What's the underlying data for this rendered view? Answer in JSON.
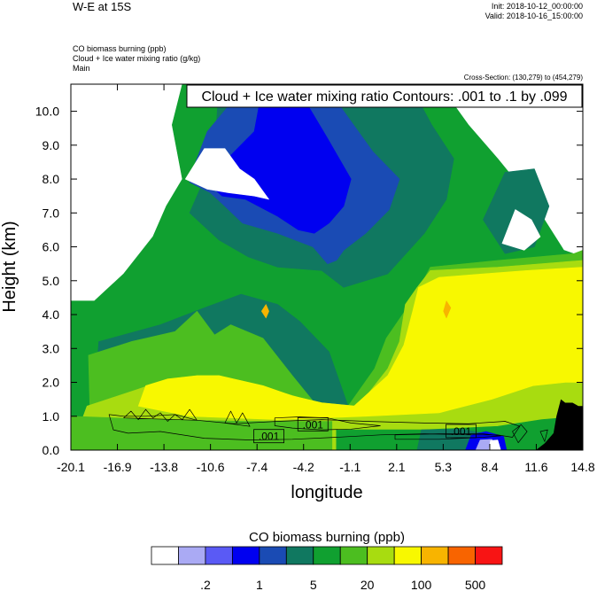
{
  "header": {
    "title": "W-E at 15S",
    "init": "Init: 2018-10-12_00:00:00",
    "valid": "Valid: 2018-10-16_15:00:00",
    "fields": [
      "CO biomass burning   (ppb)",
      "Cloud + Ice water mixing ratio   (g/kg)",
      "Main"
    ],
    "cross_section": "Cross-Section: (130,279) to (454,279)"
  },
  "chart_data": {
    "type": "heatmap",
    "title": "W-E at 15S",
    "xlabel": "longitude",
    "ylabel": "Height (km)",
    "xlim": [
      -20.1,
      14.8
    ],
    "ylim": [
      0.0,
      10.8
    ],
    "x_ticks": [
      "-20.1",
      "-16.9",
      "-13.8",
      "-10.6",
      "-7.4",
      "-4.2",
      "-1.1",
      "2.1",
      "5.3",
      "8.4",
      "11.6",
      "14.8"
    ],
    "y_ticks": [
      "0.0",
      "1.0",
      "2.0",
      "3.0",
      "4.0",
      "5.0",
      "6.0",
      "7.0",
      "8.0",
      "9.0",
      "10.0"
    ],
    "contour_info": "Cloud + Ice water mixing ratio Contours: .001 to .1 by .099",
    "contour_labels": [
      {
        "text": ".001",
        "lon": -6.6,
        "height": 0.4
      },
      {
        "text": ".001",
        "lon": -3.6,
        "height": 0.75
      },
      {
        "text": ".001",
        "lon": 6.5,
        "height": 0.55
      }
    ],
    "colorbar": {
      "title": "CO biomass burning  (ppb)",
      "colors": [
        "#ffffff",
        "#aaaaf4",
        "#5a5af5",
        "#0000f0",
        "#1a4bb4",
        "#107860",
        "#10a030",
        "#4cbe20",
        "#a8dc10",
        "#f8f800",
        "#f8b400",
        "#f86400",
        "#f81414"
      ],
      "labels": [
        ".2",
        "1",
        "5",
        "20",
        "100",
        "500"
      ]
    },
    "regions": [
      {
        "level": 6,
        "poly": [
          [
            -20.1,
            0
          ],
          [
            14.8,
            0
          ],
          [
            14.8,
            5.7
          ],
          [
            13.5,
            5.9
          ],
          [
            11.6,
            7.2
          ],
          [
            10.5,
            7.8
          ],
          [
            9,
            8.6
          ],
          [
            7,
            9.6
          ],
          [
            5,
            10.8
          ],
          [
            -12.5,
            10.8
          ],
          [
            -13.2,
            9.6
          ],
          [
            -12.5,
            8
          ],
          [
            -13.6,
            7.2
          ],
          [
            -14.5,
            6.3
          ],
          [
            -16.5,
            5.2
          ],
          [
            -18.5,
            4.4
          ],
          [
            -20.1,
            4.4
          ]
        ]
      },
      {
        "level": 5,
        "poly": [
          [
            -10,
            10.8
          ],
          [
            -10.2,
            9.5
          ],
          [
            -11,
            8
          ],
          [
            -12,
            7
          ],
          [
            -10,
            6.2
          ],
          [
            -8,
            5.7
          ],
          [
            -6,
            5.4
          ],
          [
            -3,
            5.3
          ],
          [
            -1.5,
            4.8
          ],
          [
            1.5,
            5.2
          ],
          [
            4,
            6.4
          ],
          [
            5.5,
            7.4
          ],
          [
            6,
            8.6
          ],
          [
            4.5,
            9.6
          ],
          [
            3,
            10.8
          ]
        ]
      },
      {
        "level": 5,
        "poly": [
          [
            -20.1,
            0
          ],
          [
            -18.5,
            1.4
          ],
          [
            -18.2,
            3.2
          ],
          [
            -14,
            3.7
          ],
          [
            -11,
            4.2
          ],
          [
            -8.5,
            4.6
          ],
          [
            -6,
            4.3
          ],
          [
            -4.5,
            3.8
          ],
          [
            -2.5,
            2.9
          ],
          [
            -1.2,
            1.3
          ],
          [
            -2,
            0
          ]
        ]
      },
      {
        "level": 5,
        "poly": [
          [
            8,
            6.8
          ],
          [
            9.5,
            8.2
          ],
          [
            11.5,
            8.3
          ],
          [
            12.5,
            7.2
          ],
          [
            11.5,
            6
          ],
          [
            9.5,
            5.8
          ]
        ]
      },
      {
        "level": 4,
        "poly": [
          [
            -10.8,
            9.4
          ],
          [
            -11.6,
            8.5
          ],
          [
            -12,
            7.9
          ],
          [
            -10.6,
            7.6
          ],
          [
            -9.6,
            7.2
          ],
          [
            -8.4,
            6.7
          ],
          [
            -6,
            6.4
          ],
          [
            -3.6,
            6
          ],
          [
            -2.6,
            5.5
          ],
          [
            -2,
            5.6
          ],
          [
            -1.5,
            5.9
          ],
          [
            0,
            6.4
          ],
          [
            1.6,
            7.1
          ],
          [
            2.3,
            8
          ],
          [
            0.5,
            8.8
          ],
          [
            -2,
            10.3
          ],
          [
            -5,
            10.8
          ],
          [
            -8.5,
            10.6
          ]
        ]
      },
      {
        "level": 3,
        "poly": [
          [
            -7,
            10.8
          ],
          [
            -7.6,
            9.4
          ],
          [
            -9.2,
            8.7
          ],
          [
            -10.8,
            7.9
          ],
          [
            -9.8,
            7.5
          ],
          [
            -8.2,
            7.4
          ],
          [
            -6,
            6.9
          ],
          [
            -4.6,
            6.5
          ],
          [
            -3.5,
            6.4
          ],
          [
            -2.5,
            6.7
          ],
          [
            -1.5,
            7.2
          ],
          [
            -1,
            8
          ],
          [
            -2.6,
            9.2
          ],
          [
            -4.8,
            10.8
          ]
        ]
      },
      {
        "level": 0,
        "poly": [
          [
            -12.3,
            8
          ],
          [
            -11,
            8.9
          ],
          [
            -9.6,
            8.9
          ],
          [
            -8.6,
            8.3
          ],
          [
            -7.6,
            8
          ],
          [
            -6.6,
            7.4
          ],
          [
            -7.6,
            7.5
          ],
          [
            -9.4,
            7.6
          ],
          [
            -10.8,
            7.7
          ]
        ]
      },
      {
        "level": 0,
        "poly": [
          [
            9.3,
            6.1
          ],
          [
            10.2,
            7.1
          ],
          [
            11.3,
            6.8
          ],
          [
            11.9,
            6.3
          ],
          [
            10.8,
            5.9
          ]
        ]
      },
      {
        "level": 7,
        "poly": [
          [
            -20.1,
            0
          ],
          [
            -18.8,
            1.2
          ],
          [
            -18.9,
            2.8
          ],
          [
            -16,
            3.2
          ],
          [
            -13,
            3.5
          ],
          [
            -11.5,
            4.1
          ],
          [
            -10.3,
            3.4
          ],
          [
            -9.2,
            3.7
          ],
          [
            -7,
            3.3
          ],
          [
            -5,
            2.2
          ],
          [
            -3.5,
            1.4
          ],
          [
            -1.2,
            1.3
          ],
          [
            0.6,
            2.4
          ],
          [
            1.4,
            3.3
          ],
          [
            3.3,
            4.5
          ],
          [
            4.4,
            5.4
          ],
          [
            9,
            5.6
          ],
          [
            14.2,
            5.8
          ],
          [
            14.8,
            5.9
          ],
          [
            14.8,
            0
          ]
        ]
      },
      {
        "level": 8,
        "poly": [
          [
            -20.1,
            0
          ],
          [
            -19,
            1.3
          ],
          [
            -17.6,
            1.5
          ],
          [
            -15.5,
            1.8
          ],
          [
            -13.5,
            2.1
          ],
          [
            -10,
            2.2
          ],
          [
            -6.5,
            1.8
          ],
          [
            -3.3,
            1.4
          ],
          [
            -0.5,
            1.3
          ],
          [
            1.5,
            2.4
          ],
          [
            2.3,
            3.2
          ],
          [
            2.7,
            4.3
          ],
          [
            3.5,
            4.8
          ],
          [
            4.4,
            5.3
          ],
          [
            9,
            5.4
          ],
          [
            14.8,
            5.6
          ],
          [
            14.8,
            0
          ]
        ]
      },
      {
        "level": 9,
        "poly": [
          [
            -15.5,
            1.3
          ],
          [
            -15,
            1.9
          ],
          [
            -13.5,
            2.1
          ],
          [
            -11.5,
            2.2
          ],
          [
            -10,
            2.2
          ],
          [
            -7,
            1.9
          ],
          [
            -5,
            1.6
          ],
          [
            -3,
            1.4
          ],
          [
            -0.8,
            1.3
          ],
          [
            1.5,
            2.2
          ],
          [
            2.6,
            3.1
          ],
          [
            3.2,
            4.1
          ],
          [
            3.6,
            4.8
          ],
          [
            5,
            5.1
          ],
          [
            8,
            5.2
          ],
          [
            11,
            5.3
          ],
          [
            14.8,
            5.4
          ],
          [
            14.8,
            2
          ],
          [
            13.6,
            2
          ],
          [
            11.4,
            1.9
          ],
          [
            8.6,
            1.5
          ],
          [
            5,
            1.1
          ],
          [
            0,
            1
          ],
          [
            -6,
            0.9
          ],
          [
            -12,
            1
          ]
        ]
      },
      {
        "level": 6,
        "poly": [
          [
            -2,
            0
          ],
          [
            -2,
            0.6
          ],
          [
            4,
            0.6
          ],
          [
            9,
            0.7
          ],
          [
            12,
            0.9
          ],
          [
            14.8,
            1
          ],
          [
            14.8,
            0
          ]
        ]
      },
      {
        "level": 7,
        "poly": [
          [
            -20.1,
            0
          ],
          [
            -20.1,
            1
          ],
          [
            -14,
            0.9
          ],
          [
            -8,
            0.85
          ],
          [
            -2.3,
            0.85
          ],
          [
            -2.3,
            0
          ]
        ]
      },
      {
        "level": 5,
        "poly": [
          [
            3.5,
            0
          ],
          [
            3.8,
            0.6
          ],
          [
            6.5,
            0.62
          ],
          [
            8,
            0.5
          ],
          [
            8.4,
            0
          ]
        ]
      },
      {
        "level": 3,
        "poly": [
          [
            6.8,
            0
          ],
          [
            7.2,
            0.45
          ],
          [
            8.2,
            0.55
          ],
          [
            9.4,
            0.4
          ],
          [
            9.6,
            0
          ]
        ]
      },
      {
        "level": 1,
        "poly": [
          [
            7.5,
            0
          ],
          [
            7.8,
            0.3
          ],
          [
            8.6,
            0.32
          ],
          [
            9,
            0
          ]
        ]
      },
      {
        "level": 0,
        "poly": [
          [
            8.4,
            0
          ],
          [
            8.5,
            0.28
          ],
          [
            9,
            0.3
          ],
          [
            9.2,
            0
          ]
        ]
      },
      {
        "level": 10,
        "poly": [
          [
            -7.1,
            4.1
          ],
          [
            -6.8,
            4.3
          ],
          [
            -6.6,
            4.1
          ],
          [
            -6.8,
            3.9
          ]
        ]
      },
      {
        "level": 10,
        "poly": [
          [
            5.3,
            4.1
          ],
          [
            5.5,
            4.4
          ],
          [
            5.8,
            4.2
          ],
          [
            5.5,
            3.9
          ]
        ]
      }
    ],
    "terrain": [
      [
        11.6,
        0
      ],
      [
        12.2,
        0.2
      ],
      [
        12.8,
        0.5
      ],
      [
        13,
        1
      ],
      [
        13.3,
        1.5
      ],
      [
        13.6,
        1.4
      ],
      [
        14.1,
        1.4
      ],
      [
        14.5,
        1.3
      ],
      [
        14.8,
        1.3
      ],
      [
        14.8,
        0
      ]
    ],
    "contours": [
      [
        [
          -17.5,
          1.05
        ],
        [
          -17.2,
          0.6
        ],
        [
          -16.2,
          0.5
        ],
        [
          -14,
          0.55
        ],
        [
          -11,
          0.35
        ],
        [
          -8,
          0.3
        ],
        [
          -5,
          0.32
        ],
        [
          -2,
          0.38
        ],
        [
          1,
          0.45
        ],
        [
          4,
          0.48
        ],
        [
          7,
          0.45
        ],
        [
          9,
          0.45
        ],
        [
          10,
          0.38
        ],
        [
          10.5,
          0.7
        ],
        [
          9.5,
          0.85
        ],
        [
          7,
          0.78
        ],
        [
          4,
          0.8
        ],
        [
          0,
          0.85
        ],
        [
          -3,
          0.9
        ],
        [
          -6,
          0.85
        ],
        [
          -9,
          0.78
        ],
        [
          -11.5,
          0.88
        ],
        [
          -13,
          1.05
        ],
        [
          -15,
          1.0
        ],
        [
          -16.5,
          1.0
        ]
      ],
      [
        [
          -16.5,
          0.95
        ],
        [
          -16,
          1.15
        ],
        [
          -15.5,
          0.9
        ],
        [
          -15,
          1.2
        ],
        [
          -14.5,
          0.95
        ],
        [
          -14,
          1.1
        ],
        [
          -13.5,
          0.85
        ],
        [
          -13,
          1.05
        ],
        [
          -12.5,
          0.9
        ],
        [
          -12,
          1.2
        ],
        [
          -11.5,
          0.88
        ]
      ],
      [
        [
          -9.6,
          0.8
        ],
        [
          -9.2,
          1.15
        ],
        [
          -8.8,
          0.8
        ],
        [
          -8.4,
          1.1
        ],
        [
          -7.9,
          0.7
        ]
      ],
      [
        [
          -6.2,
          0.95
        ],
        [
          -4.5,
          0.98
        ],
        [
          -2.6,
          0.95
        ],
        [
          -1,
          0.8
        ],
        [
          1,
          0.72
        ],
        [
          -1,
          0.62
        ],
        [
          -3,
          0.6
        ],
        [
          -5,
          0.65
        ],
        [
          -6.2,
          0.72
        ]
      ],
      [
        [
          2,
          0.32
        ],
        [
          5,
          0.32
        ],
        [
          8,
          0.38
        ],
        [
          9.2,
          0.42
        ],
        [
          8,
          0.48
        ],
        [
          5,
          0.48
        ],
        [
          2,
          0.45
        ]
      ],
      [
        [
          10,
          0.55
        ],
        [
          10.4,
          0.22
        ],
        [
          11,
          0.55
        ],
        [
          10.6,
          0.75
        ]
      ],
      [
        [
          11.9,
          0.55
        ],
        [
          12.2,
          0.25
        ],
        [
          12.4,
          0.6
        ]
      ]
    ]
  }
}
